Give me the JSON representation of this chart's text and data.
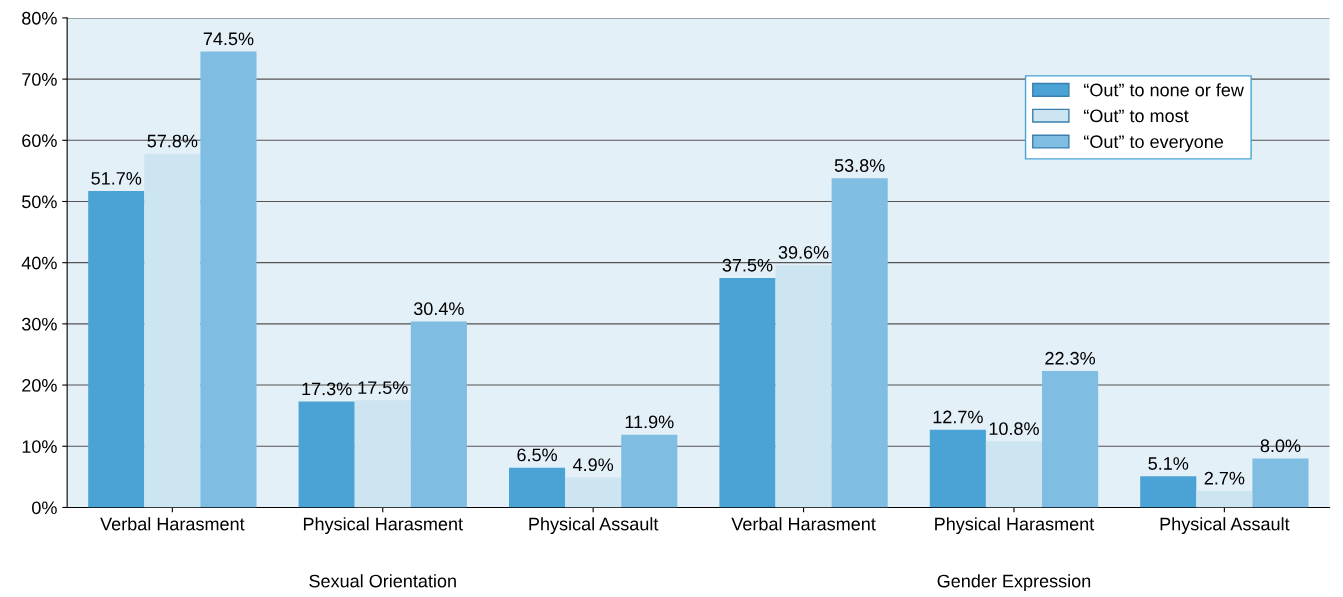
{
  "chart_data": {
    "type": "bar",
    "categories": [
      "Verbal Harasment",
      "Physical Harasment",
      "Physical Assault",
      "Verbal Harasment",
      "Physical Harasment",
      "Physical Assault"
    ],
    "series": [
      {
        "name": "“Out” to none or few",
        "color": "#4aa3d4",
        "values": [
          51.7,
          17.3,
          6.5,
          37.5,
          12.7,
          5.1
        ],
        "value_labels": [
          "51.7%",
          "17.3%",
          "6.5%",
          "37.5%",
          "12.7%",
          "5.1%"
        ]
      },
      {
        "name": "“Out” to most",
        "color": "#cde4f1",
        "values": [
          57.8,
          17.5,
          4.9,
          39.6,
          10.8,
          2.7
        ],
        "value_labels": [
          "57.8%",
          "17.5%",
          "4.9%",
          "39.6%",
          "10.8%",
          "2.7%"
        ]
      },
      {
        "name": "“Out” to everyone",
        "color": "#7fbde2",
        "values": [
          74.5,
          30.4,
          11.9,
          53.8,
          22.3,
          8.0
        ],
        "value_labels": [
          "74.5%",
          "30.4%",
          "11.9%",
          "53.8%",
          "22.3%",
          "8.0%"
        ]
      }
    ],
    "ylim": [
      0,
      80
    ],
    "yticks": [
      {
        "value": 0,
        "label": "0%"
      },
      {
        "value": 10,
        "label": "10%"
      },
      {
        "value": 20,
        "label": "20%"
      },
      {
        "value": 30,
        "label": "30%"
      },
      {
        "value": 40,
        "label": "40%"
      },
      {
        "value": 50,
        "label": "50%"
      },
      {
        "value": 60,
        "label": "60%"
      },
      {
        "value": 70,
        "label": "70%"
      },
      {
        "value": 80,
        "label": "80%"
      }
    ],
    "grid": "y",
    "legend": "top right",
    "annotations": [
      "Sexual Orientation",
      "Gender Expression"
    ]
  }
}
